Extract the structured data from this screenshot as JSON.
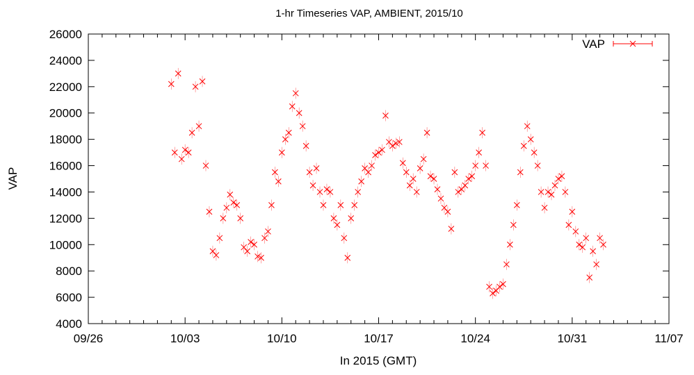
{
  "chart_data": {
    "type": "scatter",
    "title": "1-hr Timeseries VAP, AMBIENT, 2015/10",
    "xlabel": "In 2015 (GMT)",
    "ylabel": "VAP",
    "x_tick_labels": [
      "09/26",
      "10/03",
      "10/10",
      "10/17",
      "10/24",
      "10/31",
      "11/07"
    ],
    "y_tick_labels": [
      "4000",
      "6000",
      "8000",
      "10000",
      "12000",
      "14000",
      "16000",
      "18000",
      "20000",
      "22000",
      "24000",
      "26000"
    ],
    "xlim": [
      "2015-09-26",
      "2015-11-07"
    ],
    "ylim": [
      4000,
      26000
    ],
    "grid": false,
    "legend": "top-right",
    "marker": "x with error bars",
    "color": "#ff0000",
    "series": [
      {
        "name": "VAP",
        "x": [
          "2015-10-02 00:00",
          "2015-10-02 06:00",
          "2015-10-02 12:00",
          "2015-10-02 18:00",
          "2015-10-03 00:00",
          "2015-10-03 06:00",
          "2015-10-03 12:00",
          "2015-10-03 18:00",
          "2015-10-04 00:00",
          "2015-10-04 06:00",
          "2015-10-04 12:00",
          "2015-10-04 18:00",
          "2015-10-05 00:00",
          "2015-10-05 06:00",
          "2015-10-05 12:00",
          "2015-10-05 18:00",
          "2015-10-06 00:00",
          "2015-10-06 06:00",
          "2015-10-06 12:00",
          "2015-10-06 18:00",
          "2015-10-07 00:00",
          "2015-10-07 06:00",
          "2015-10-07 12:00",
          "2015-10-07 18:00",
          "2015-10-08 00:00",
          "2015-10-08 06:00",
          "2015-10-08 12:00",
          "2015-10-08 18:00",
          "2015-10-09 00:00",
          "2015-10-09 06:00",
          "2015-10-09 12:00",
          "2015-10-09 18:00",
          "2015-10-10 00:00",
          "2015-10-10 06:00",
          "2015-10-10 12:00",
          "2015-10-10 18:00",
          "2015-10-11 00:00",
          "2015-10-11 06:00",
          "2015-10-11 12:00",
          "2015-10-11 18:00",
          "2015-10-12 00:00",
          "2015-10-12 06:00",
          "2015-10-12 12:00",
          "2015-10-12 18:00",
          "2015-10-13 00:00",
          "2015-10-13 06:00",
          "2015-10-13 12:00",
          "2015-10-13 18:00",
          "2015-10-14 00:00",
          "2015-10-14 06:00",
          "2015-10-14 12:00",
          "2015-10-14 18:00",
          "2015-10-15 00:00",
          "2015-10-15 06:00",
          "2015-10-15 12:00",
          "2015-10-15 18:00",
          "2015-10-16 00:00",
          "2015-10-16 06:00",
          "2015-10-16 12:00",
          "2015-10-16 18:00",
          "2015-10-17 00:00",
          "2015-10-17 06:00",
          "2015-10-17 12:00",
          "2015-10-17 18:00",
          "2015-10-18 00:00",
          "2015-10-18 06:00",
          "2015-10-18 12:00",
          "2015-10-18 18:00",
          "2015-10-19 00:00",
          "2015-10-19 06:00",
          "2015-10-19 12:00",
          "2015-10-19 18:00",
          "2015-10-20 00:00",
          "2015-10-20 06:00",
          "2015-10-20 12:00",
          "2015-10-20 18:00",
          "2015-10-21 00:00",
          "2015-10-21 06:00",
          "2015-10-21 12:00",
          "2015-10-21 18:00",
          "2015-10-22 00:00",
          "2015-10-22 06:00",
          "2015-10-22 12:00",
          "2015-10-22 18:00",
          "2015-10-23 00:00",
          "2015-10-23 06:00",
          "2015-10-23 12:00",
          "2015-10-23 18:00",
          "2015-10-24 00:00",
          "2015-10-24 06:00",
          "2015-10-24 12:00",
          "2015-10-24 18:00",
          "2015-10-25 00:00",
          "2015-10-25 06:00",
          "2015-10-25 12:00",
          "2015-10-25 18:00",
          "2015-10-26 00:00",
          "2015-10-26 06:00",
          "2015-10-26 12:00",
          "2015-10-26 18:00",
          "2015-10-27 00:00",
          "2015-10-27 06:00",
          "2015-10-27 12:00",
          "2015-10-27 18:00",
          "2015-10-28 00:00",
          "2015-10-28 06:00",
          "2015-10-28 12:00",
          "2015-10-28 18:00",
          "2015-10-29 00:00",
          "2015-10-29 06:00",
          "2015-10-29 12:00",
          "2015-10-29 18:00",
          "2015-10-30 00:00",
          "2015-10-30 06:00",
          "2015-10-30 12:00",
          "2015-10-30 18:00",
          "2015-10-31 00:00",
          "2015-10-31 06:00",
          "2015-10-31 12:00",
          "2015-10-31 18:00",
          "2015-11-01 00:00",
          "2015-11-01 06:00",
          "2015-11-01 12:00",
          "2015-11-01 18:00",
          "2015-11-02 00:00",
          "2015-11-02 06:00"
        ],
        "y": [
          22200,
          17000,
          23000,
          16500,
          17200,
          17000,
          18500,
          22000,
          19000,
          22400,
          16000,
          12500,
          9500,
          9200,
          10500,
          12000,
          12800,
          13800,
          13200,
          13000,
          12000,
          9800,
          9500,
          10200,
          10000,
          9100,
          9000,
          10500,
          11000,
          13000,
          15500,
          14800,
          17000,
          18000,
          18500,
          20500,
          21500,
          20000,
          19000,
          17500,
          15500,
          14500,
          15800,
          14000,
          13000,
          14200,
          14000,
          12000,
          11500,
          13000,
          10500,
          9000,
          12000,
          13000,
          14000,
          14800,
          15800,
          15500,
          16000,
          16800,
          17000,
          17200,
          19800,
          17800,
          17500,
          17700,
          17800,
          16200,
          15500,
          14500,
          15000,
          14000,
          15800,
          16500,
          18500,
          15200,
          15000,
          14200,
          13500,
          12800,
          12500,
          11200,
          15500,
          14000,
          14200,
          14500,
          15000,
          15200,
          16000,
          17000,
          18500,
          16000,
          6800,
          6300,
          6500,
          6800,
          7000,
          8500,
          10000,
          11500,
          13000,
          15500,
          17500,
          19000,
          18000,
          17000,
          16000,
          14000,
          12800,
          14000,
          13800,
          14500,
          15000,
          15200,
          14000,
          11500,
          12500,
          11000,
          10000,
          9800,
          10500,
          7500,
          9500,
          8500,
          10500,
          10000
        ]
      }
    ]
  }
}
